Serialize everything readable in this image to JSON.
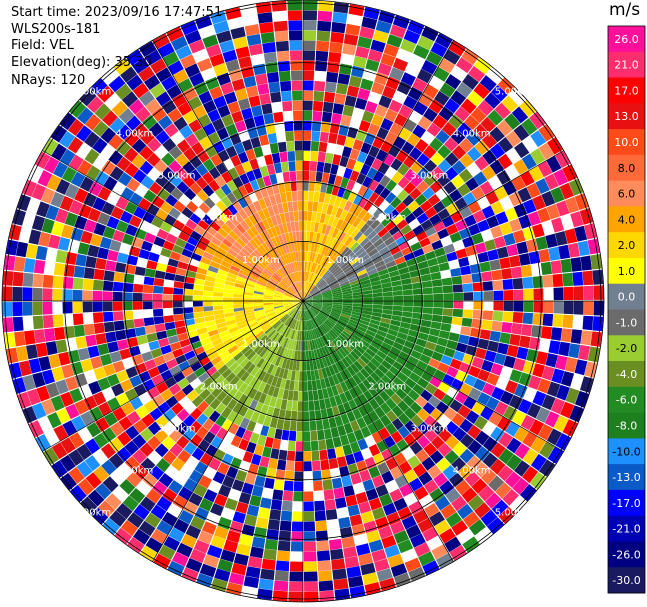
{
  "header": {
    "start_time": "Start time: 2023/09/16 17:47:51",
    "instrument": "WLS200s-181",
    "field": "Field: VEL",
    "elevation": "Elevation(deg): 35.30",
    "nrays": "NRays: 120"
  },
  "colorbar": {
    "unit": "m/s",
    "ticks": [
      "26.0",
      "21.0",
      "17.0",
      "13.0",
      "10.0",
      "8.0",
      "6.0",
      "4.0",
      "2.0",
      "1.0",
      "0.0",
      "-1.0",
      "-2.0",
      "-4.0",
      "-6.0",
      "-8.0",
      "-10.0",
      "-13.0",
      "-17.0",
      "-21.0",
      "-26.0",
      "-30.0"
    ],
    "colors": [
      "#ff0f9a",
      "#ff2d6e",
      "#ff0000",
      "#e81010",
      "#ff4a1a",
      "#ff6a3a",
      "#ff8c5a",
      "#ffa500",
      "#ffd700",
      "#ffff00",
      "#708090",
      "#6b6b6b",
      "#9acd32",
      "#6b8e23",
      "#228b22",
      "#1e7f1e",
      "#1e90ff",
      "#0a5ac8",
      "#0000ff",
      "#0000b4",
      "#000080",
      "#1a1a60"
    ]
  },
  "chart_data": {
    "type": "ppi",
    "field": "VEL",
    "units": "m/s",
    "nrays": 120,
    "elevation_deg": 35.3,
    "range_rings_km": [
      1.0,
      2.0,
      3.0,
      4.0,
      5.0
    ],
    "ring_labels": [
      "1.00km",
      "2.00km",
      "3.00km",
      "4.00km",
      "5.00km"
    ],
    "max_range_km": 5.05,
    "sectors": [
      {
        "azimuth_from": 0,
        "azimuth_to": 40,
        "near_velocity": 4.0,
        "noise_from_km": 1.9
      },
      {
        "azimuth_from": 40,
        "azimuth_to": 70,
        "near_velocity": 0.0,
        "noise_from_km": 1.8
      },
      {
        "azimuth_from": 70,
        "azimuth_to": 180,
        "near_velocity": -6.0,
        "noise_from_km": 2.6
      },
      {
        "azimuth_from": 180,
        "azimuth_to": 230,
        "near_velocity": -2.0,
        "noise_from_km": 2.4
      },
      {
        "azimuth_from": 230,
        "azimuth_to": 290,
        "near_velocity": 2.0,
        "noise_from_km": 1.9
      },
      {
        "azimuth_from": 290,
        "azimuth_to": 360,
        "near_velocity": 6.0,
        "noise_from_km": 2.0
      }
    ]
  }
}
